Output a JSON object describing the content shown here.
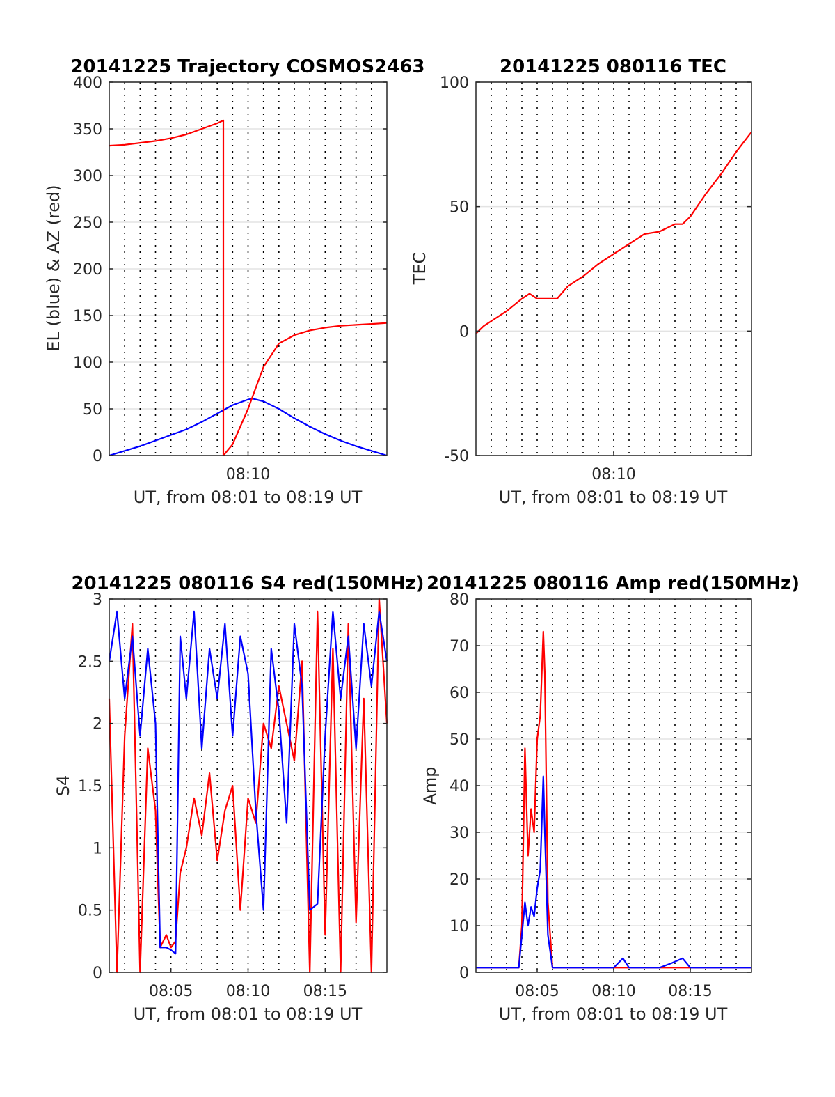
{
  "colors": {
    "el": "#0000ff",
    "az": "#ff0000",
    "tec": "#ff0000",
    "s4_red": "#ff0000",
    "s4_blue": "#0000ff",
    "amp_red": "#ff0000",
    "amp_blue": "#0000ff"
  },
  "chart_data": [
    {
      "type": "line",
      "title": "20141225 Trajectory COSMOS2463",
      "xlabel": "UT, from 08:01 to 08:19 UT",
      "ylabel": "EL (blue) & AZ (red)",
      "xlim": [
        "08:01",
        "08:19"
      ],
      "ylim": [
        0,
        400
      ],
      "yticks": [
        "0",
        "50",
        "100",
        "150",
        "200",
        "250",
        "300",
        "350",
        "400"
      ],
      "xticks": [
        "08:10"
      ],
      "grid": "x dotted every minute, y solid",
      "series": [
        {
          "color": "blue",
          "x": [
            "08:01",
            "08:02",
            "08:03",
            "08:04",
            "08:05",
            "08:06",
            "08:07",
            "08:08",
            "08:09",
            "08:10",
            "08:10.3",
            "08:11",
            "08:12",
            "08:13",
            "08:14",
            "08:15",
            "08:16",
            "08:17",
            "08:18",
            "08:19"
          ],
          "values": [
            0,
            5,
            10,
            16,
            22,
            28,
            36,
            45,
            54,
            60,
            61,
            58,
            50,
            40,
            31,
            23,
            16,
            10,
            5,
            0
          ]
        },
        {
          "color": "red",
          "x": [
            "08:01",
            "08:02",
            "08:03",
            "08:04",
            "08:05",
            "08:06",
            "08:07",
            "08:08",
            "08:08.4",
            "08:08.4",
            "08:09",
            "08:10",
            "08:11",
            "08:12",
            "08:13",
            "08:14",
            "08:15",
            "08:16",
            "08:17",
            "08:18",
            "08:19"
          ],
          "values": [
            332,
            333,
            335,
            337,
            340,
            344,
            350,
            356,
            359,
            0,
            12,
            50,
            95,
            120,
            129,
            134,
            137,
            139,
            140,
            141,
            142
          ]
        }
      ]
    },
    {
      "type": "line",
      "title": "20141225 080116 TEC",
      "xlabel": "UT, from 08:01 to 08:19 UT",
      "ylabel": "TEC",
      "xlim": [
        "08:01",
        "08:19"
      ],
      "ylim": [
        -50,
        100
      ],
      "yticks": [
        "-50",
        "0",
        "50",
        "100"
      ],
      "xticks": [
        "08:10"
      ],
      "series": [
        {
          "color": "red",
          "x": [
            "08:01",
            "08:01.5",
            "08:02",
            "08:03",
            "08:04",
            "08:04.5",
            "08:05",
            "08:06",
            "08:06.3",
            "08:07",
            "08:08",
            "08:09",
            "08:10",
            "08:11",
            "08:12",
            "08:13",
            "08:14",
            "08:14.5",
            "08:15",
            "08:16",
            "08:17",
            "08:18",
            "08:19"
          ],
          "values": [
            -1,
            2,
            4,
            8,
            13,
            15,
            13,
            13,
            13,
            18,
            22,
            27,
            31,
            35,
            39,
            40,
            43,
            43,
            46,
            55,
            63,
            72,
            80
          ]
        }
      ]
    },
    {
      "type": "line",
      "title": "20141225 080116 S4 red(150MHz)",
      "xlabel": "UT, from 08:01 to 08:19 UT",
      "ylabel": "S4",
      "xlim": [
        "08:01",
        "08:19"
      ],
      "ylim": [
        0,
        3
      ],
      "yticks": [
        "0",
        "0.5",
        "1",
        "1.5",
        "2",
        "2.5",
        "3"
      ],
      "xticks": [
        "08:05",
        "08:10",
        "08:15"
      ],
      "series": [
        {
          "color": "red",
          "x": [
            "08:01",
            "08:01.5",
            "08:02",
            "08:02.5",
            "08:03",
            "08:03.5",
            "08:04",
            "08:04.3",
            "08:04.7",
            "08:05",
            "08:05.3",
            "08:05.6",
            "08:06",
            "08:06.5",
            "08:07",
            "08:07.5",
            "08:08",
            "08:08.5",
            "08:09",
            "08:09.5",
            "08:10",
            "08:10.5",
            "08:11",
            "08:11.5",
            "08:12",
            "08:12.5",
            "08:13",
            "08:13.5",
            "08:14",
            "08:14.5",
            "08:15",
            "08:15.5",
            "08:16",
            "08:16.5",
            "08:17",
            "08:17.5",
            "08:18",
            "08:18.5",
            "08:19"
          ],
          "values": [
            2.2,
            0.0,
            1.9,
            2.8,
            0.0,
            1.8,
            1.3,
            0.2,
            0.3,
            0.2,
            0.25,
            0.8,
            1.0,
            1.4,
            1.1,
            1.6,
            0.9,
            1.3,
            1.5,
            0.5,
            1.4,
            1.2,
            2.0,
            1.8,
            2.3,
            2.0,
            1.7,
            2.5,
            0.0,
            2.9,
            0.3,
            2.6,
            0.0,
            2.8,
            0.4,
            2.2,
            0.0,
            3.0,
            2.0
          ]
        },
        {
          "color": "blue",
          "x": [
            "08:01",
            "08:01.5",
            "08:02",
            "08:02.5",
            "08:03",
            "08:03.5",
            "08:04",
            "08:04.3",
            "08:04.7",
            "08:05",
            "08:05.3",
            "08:05.6",
            "08:06",
            "08:06.5",
            "08:07",
            "08:07.5",
            "08:08",
            "08:08.5",
            "08:09",
            "08:09.5",
            "08:10",
            "08:10.5",
            "08:11",
            "08:11.5",
            "08:12",
            "08:12.5",
            "08:13",
            "08:13.5",
            "08:14",
            "08:14.5",
            "08:15",
            "08:15.5",
            "08:16",
            "08:16.5",
            "08:17",
            "08:17.5",
            "08:18",
            "08:18.5",
            "08:19"
          ],
          "values": [
            2.5,
            2.9,
            2.2,
            2.7,
            1.9,
            2.6,
            2.0,
            0.2,
            0.2,
            0.18,
            0.15,
            2.7,
            2.2,
            2.9,
            1.8,
            2.6,
            2.2,
            2.8,
            1.9,
            2.7,
            2.4,
            1.3,
            0.5,
            2.6,
            2.1,
            1.2,
            2.8,
            2.3,
            0.5,
            0.55,
            1.9,
            2.9,
            2.2,
            2.7,
            1.8,
            2.8,
            2.3,
            2.9,
            2.5
          ]
        }
      ]
    },
    {
      "type": "line",
      "title": "20141225 080116 Amp red(150MHz)",
      "xlabel": "UT, from 08:01 to 08:19 UT",
      "ylabel": "Amp",
      "xlim": [
        "08:01",
        "08:19"
      ],
      "ylim": [
        0,
        80
      ],
      "yticks": [
        "0",
        "10",
        "20",
        "30",
        "40",
        "50",
        "60",
        "70",
        "80"
      ],
      "xticks": [
        "08:05",
        "08:10",
        "08:15"
      ],
      "series": [
        {
          "color": "red",
          "x": [
            "08:01",
            "08:02",
            "08:03",
            "08:03.8",
            "08:04",
            "08:04.2",
            "08:04.4",
            "08:04.6",
            "08:04.8",
            "08:05",
            "08:05.2",
            "08:05.4",
            "08:05.5",
            "08:05.7",
            "08:06",
            "08:07",
            "08:08",
            "08:09",
            "08:10",
            "08:11",
            "08:12",
            "08:13",
            "08:14",
            "08:15",
            "08:16",
            "08:17",
            "08:18",
            "08:19"
          ],
          "values": [
            1,
            1,
            1,
            1,
            10,
            48,
            25,
            35,
            30,
            50,
            55,
            73,
            64,
            15,
            1,
            1,
            1,
            1,
            1,
            1,
            1,
            1,
            1,
            1,
            1,
            1,
            1,
            1
          ]
        },
        {
          "color": "blue",
          "x": [
            "08:01",
            "08:02",
            "08:03",
            "08:03.8",
            "08:04",
            "08:04.2",
            "08:04.4",
            "08:04.6",
            "08:04.8",
            "08:05",
            "08:05.2",
            "08:05.4",
            "08:05.5",
            "08:05.7",
            "08:06",
            "08:07",
            "08:08",
            "08:09",
            "08:10",
            "08:10.6",
            "08:11",
            "08:12",
            "08:13",
            "08:13.8",
            "08:14.5",
            "08:15",
            "08:16",
            "08:17",
            "08:18",
            "08:19"
          ],
          "values": [
            1,
            1,
            1,
            1,
            8,
            15,
            10,
            14,
            12,
            18,
            22,
            42,
            30,
            8,
            1,
            1,
            1,
            1,
            1,
            3,
            1,
            1,
            1,
            2,
            3,
            1,
            1,
            1,
            1,
            1
          ]
        }
      ]
    }
  ]
}
